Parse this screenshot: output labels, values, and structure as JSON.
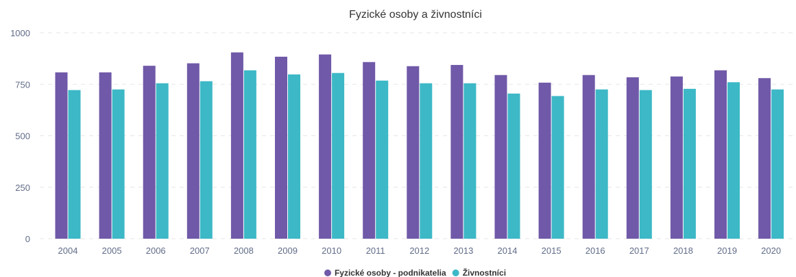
{
  "chart_data": {
    "type": "bar",
    "title": "Fyzické osoby a živnostníci",
    "xlabel": "",
    "ylabel": "",
    "categories": [
      "2004",
      "2005",
      "2006",
      "2007",
      "2008",
      "2009",
      "2010",
      "2011",
      "2012",
      "2013",
      "2014",
      "2015",
      "2016",
      "2017",
      "2018",
      "2019",
      "2020"
    ],
    "series": [
      {
        "name": "Fyzické osoby - podnikatelia",
        "color": "#7059a8",
        "values": [
          808,
          808,
          840,
          852,
          905,
          884,
          895,
          858,
          838,
          844,
          795,
          758,
          795,
          784,
          788,
          818,
          780
        ]
      },
      {
        "name": "Živnostníci",
        "color": "#3db8c6",
        "values": [
          722,
          725,
          755,
          765,
          818,
          798,
          805,
          768,
          755,
          755,
          705,
          693,
          725,
          722,
          728,
          760,
          725
        ]
      }
    ],
    "ylim": [
      0,
      1000
    ],
    "yticks": [
      0,
      250,
      500,
      750,
      1000
    ],
    "grid": true,
    "legend_position": "bottom-center"
  }
}
